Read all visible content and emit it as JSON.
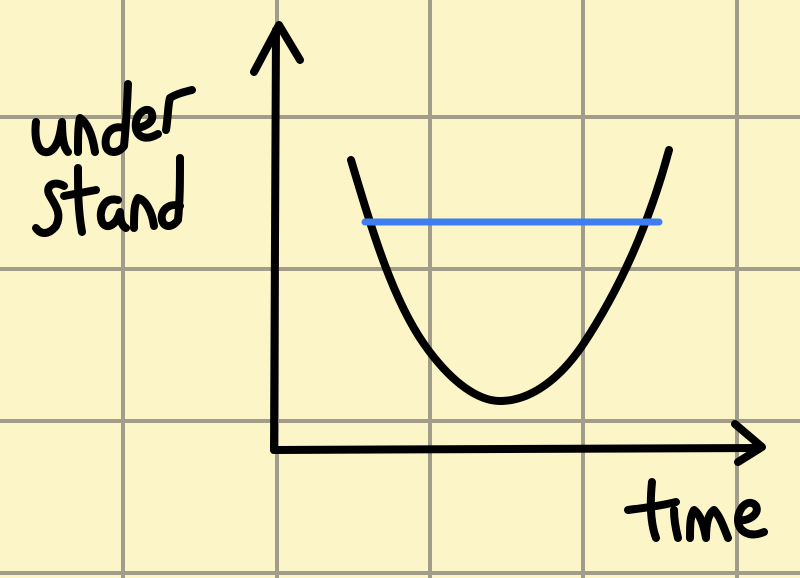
{
  "background_color": "#fbf5c8",
  "grid_color": "#a29d8a",
  "ink_color": "#000000",
  "highlight_color": "#3f7ef0",
  "y_axis_label": "under stand",
  "x_axis_label": "time",
  "curve_shape": "u-shaped",
  "horizontal_line": "blue horizontal line crossing the curve"
}
